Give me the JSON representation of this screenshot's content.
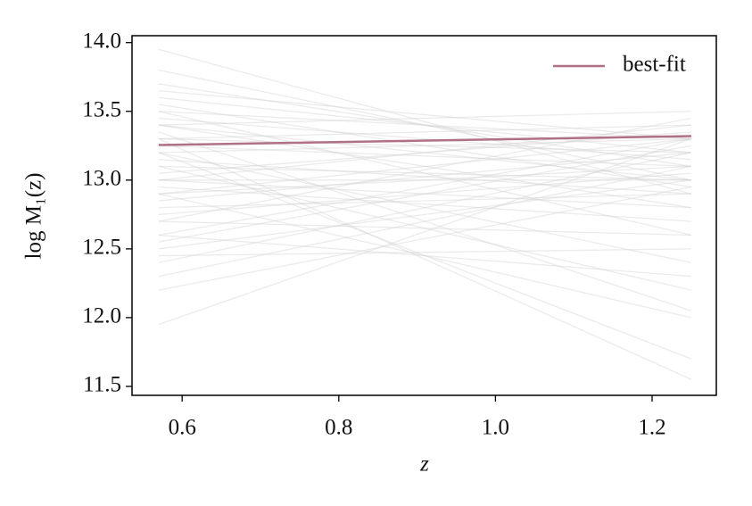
{
  "chart_data": {
    "type": "line",
    "xlabel": "z",
    "ylabel": "log M₁(z)",
    "x": [
      0.57,
      1.25
    ],
    "series": [
      {
        "name": "best-fit",
        "color": "#b07085",
        "values": [
          13.255,
          13.32
        ]
      }
    ],
    "sample_color": "#d3d3d3",
    "samples": [
      {
        "values": [
          13.3,
          13.2
        ]
      },
      {
        "values": [
          13.1,
          13.0
        ]
      },
      {
        "values": [
          12.9,
          13.1
        ]
      },
      {
        "values": [
          13.5,
          13.3
        ]
      },
      {
        "values": [
          13.7,
          13.1
        ]
      },
      {
        "values": [
          12.6,
          13.3
        ]
      },
      {
        "values": [
          12.4,
          13.2
        ]
      },
      {
        "values": [
          13.2,
          12.4
        ]
      },
      {
        "values": [
          13.4,
          12.8
        ]
      },
      {
        "values": [
          13.0,
          13.4
        ]
      },
      {
        "values": [
          12.8,
          12.9
        ]
      },
      {
        "values": [
          13.6,
          13.2
        ]
      },
      {
        "values": [
          12.7,
          12.6
        ]
      },
      {
        "values": [
          13.95,
          12.9
        ]
      },
      {
        "values": [
          12.5,
          13.0
        ]
      },
      {
        "values": [
          11.95,
          13.3
        ]
      },
      {
        "values": [
          13.1,
          12.2
        ]
      },
      {
        "values": [
          13.3,
          11.55
        ]
      },
      {
        "values": [
          13.2,
          11.7
        ]
      },
      {
        "values": [
          12.9,
          12.0
        ]
      },
      {
        "values": [
          13.4,
          13.5
        ]
      },
      {
        "values": [
          12.3,
          13.1
        ]
      },
      {
        "values": [
          13.8,
          13.0
        ]
      },
      {
        "values": [
          13.0,
          12.8
        ]
      },
      {
        "values": [
          12.6,
          12.3
        ]
      },
      {
        "values": [
          13.5,
          12.6
        ]
      },
      {
        "values": [
          12.9,
          13.3
        ]
      },
      {
        "values": [
          13.3,
          13.4
        ]
      },
      {
        "values": [
          12.75,
          13.05
        ]
      },
      {
        "values": [
          13.15,
          12.9
        ]
      },
      {
        "values": [
          13.45,
          13.15
        ]
      },
      {
        "values": [
          12.85,
          13.2
        ]
      },
      {
        "values": [
          13.05,
          13.35
        ]
      },
      {
        "values": [
          12.95,
          12.7
        ]
      },
      {
        "values": [
          13.25,
          13.1
        ]
      },
      {
        "values": [
          13.55,
          12.95
        ]
      },
      {
        "values": [
          12.45,
          12.5
        ]
      },
      {
        "values": [
          13.65,
          13.3
        ]
      },
      {
        "values": [
          12.2,
          12.95
        ]
      },
      {
        "values": [
          13.35,
          12.05
        ]
      },
      {
        "values": [
          12.7,
          13.45
        ]
      },
      {
        "values": [
          13.0,
          13.0
        ]
      },
      {
        "values": [
          13.2,
          13.3
        ]
      },
      {
        "values": [
          12.55,
          13.25
        ]
      },
      {
        "values": [
          13.4,
          13.0
        ]
      }
    ],
    "xlim": [
      0.536,
      1.282
    ],
    "ylim": [
      11.435,
      14.05
    ],
    "xticks": [
      0.6,
      0.8,
      {
        "value": 1.0,
        "label": "1.0"
      },
      1.2
    ],
    "yticks": [
      11.5,
      {
        "value": 12.0,
        "label": "12.0"
      },
      12.5,
      {
        "value": 13.0,
        "label": "13.0"
      },
      13.5,
      {
        "value": 14.0,
        "label": "14.0"
      }
    ],
    "legend": "upper right"
  }
}
